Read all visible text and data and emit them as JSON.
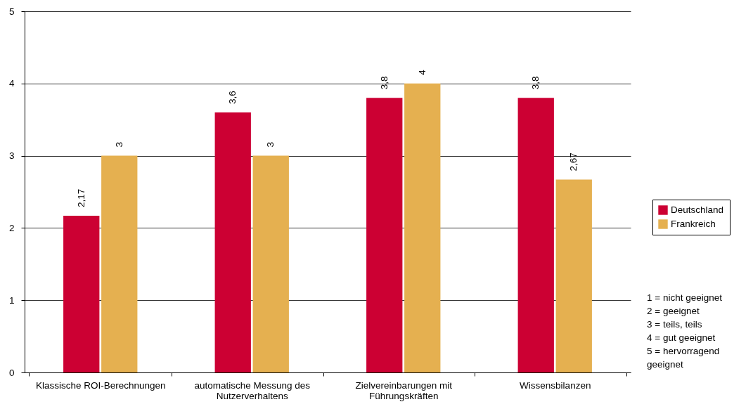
{
  "chart_data": {
    "type": "bar",
    "categories": [
      "Klassische ROI-Berechnungen",
      "automatische Messung des Nutzerverhaltens",
      "Zielvereinbarungen mit Führungskräften",
      "Wissensbilanzen"
    ],
    "series": [
      {
        "name": "Deutschland",
        "color": "#cc0033",
        "values": [
          2.17,
          3.6,
          3.8,
          3.8
        ],
        "value_labels": [
          "2,17",
          "3,6",
          "3,8",
          "3,8"
        ]
      },
      {
        "name": "Frankreich",
        "color": "#e5b050",
        "values": [
          3,
          3,
          4,
          2.67
        ],
        "value_labels": [
          "3",
          "3",
          "4",
          "2,67"
        ]
      }
    ],
    "ylim": [
      0,
      5
    ],
    "yticks": [
      0,
      1,
      2,
      3,
      4,
      5
    ],
    "grid": "y",
    "legend": "right",
    "annotations": [
      "1 = nicht geeignet",
      "2 = geeignet",
      "3 = teils, teils",
      "4 = gut geeignet",
      "5 = hervorragend geeignet"
    ]
  }
}
